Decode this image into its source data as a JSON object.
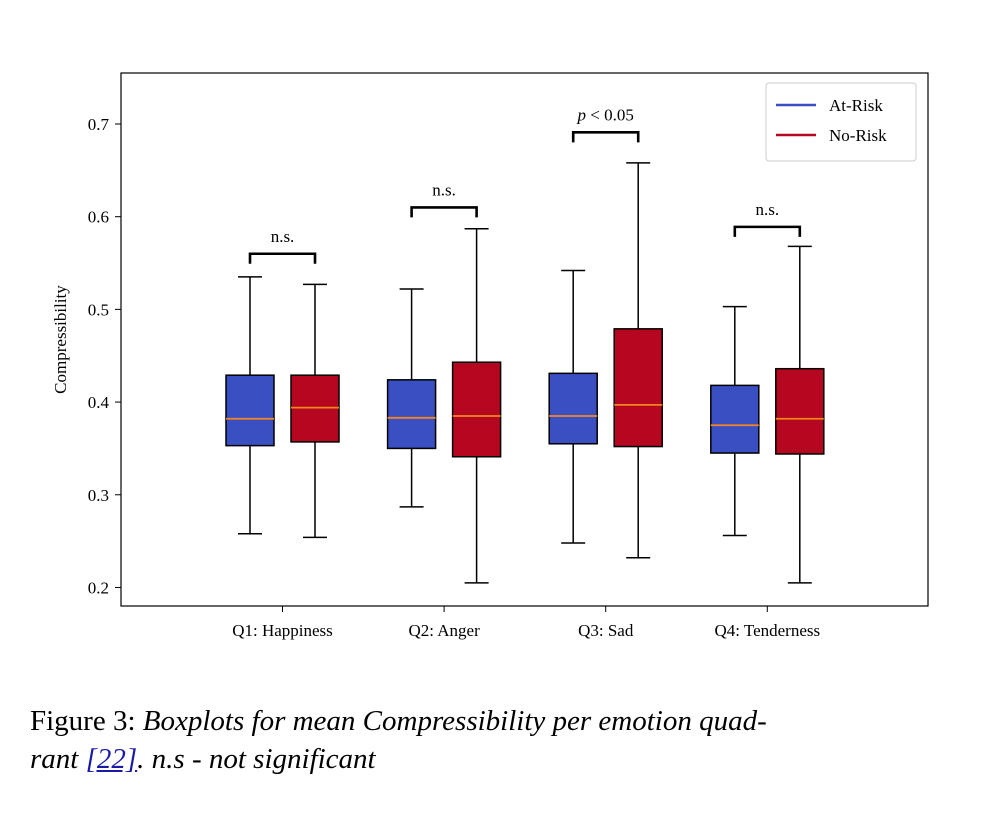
{
  "chart_data": {
    "type": "boxplot",
    "ylabel": "Compressibility",
    "ylim": [
      0.18,
      0.755
    ],
    "yticks": [
      0.2,
      0.3,
      0.4,
      0.5,
      0.6,
      0.7
    ],
    "ytick_labels": [
      "0.2",
      "0.3",
      "0.4",
      "0.5",
      "0.6",
      "0.7"
    ],
    "categories": [
      "Q1: Happiness",
      "Q2: Anger",
      "Q3: Sad",
      "Q4: Tenderness"
    ],
    "series": [
      {
        "name": "At-Risk",
        "color": "#3a4fc1",
        "boxes": [
          {
            "whisker_low": 0.258,
            "q1": 0.353,
            "median": 0.382,
            "q3": 0.429,
            "whisker_high": 0.535
          },
          {
            "whisker_low": 0.287,
            "q1": 0.35,
            "median": 0.383,
            "q3": 0.424,
            "whisker_high": 0.522
          },
          {
            "whisker_low": 0.248,
            "q1": 0.355,
            "median": 0.385,
            "q3": 0.431,
            "whisker_high": 0.542
          },
          {
            "whisker_low": 0.256,
            "q1": 0.345,
            "median": 0.375,
            "q3": 0.418,
            "whisker_high": 0.503
          }
        ]
      },
      {
        "name": "No-Risk",
        "color": "#b5071f",
        "boxes": [
          {
            "whisker_low": 0.254,
            "q1": 0.357,
            "median": 0.394,
            "q3": 0.429,
            "whisker_high": 0.527
          },
          {
            "whisker_low": 0.205,
            "q1": 0.341,
            "median": 0.385,
            "q3": 0.443,
            "whisker_high": 0.587
          },
          {
            "whisker_low": 0.232,
            "q1": 0.352,
            "median": 0.397,
            "q3": 0.479,
            "whisker_high": 0.658
          },
          {
            "whisker_low": 0.205,
            "q1": 0.344,
            "median": 0.382,
            "q3": 0.436,
            "whisker_high": 0.568
          }
        ]
      }
    ],
    "median_color": "#f5861f",
    "annotations": [
      {
        "category": 0,
        "text": "n.s.",
        "bracket_y": 0.56
      },
      {
        "category": 1,
        "text": "n.s.",
        "bracket_y": 0.61
      },
      {
        "category": 2,
        "text_prefix": "p",
        "text_suffix": " < 0.05",
        "bracket_y": 0.691
      },
      {
        "category": 3,
        "text": "n.s.",
        "bracket_y": 0.589
      }
    ],
    "legend": {
      "position": "top-right",
      "entries": [
        "At-Risk",
        "No-Risk"
      ]
    }
  },
  "caption": {
    "label": "Figure 3: ",
    "text_before_ref": "Boxplots for mean Compressibility per emotion quad-",
    "text_line2_start": "rant ",
    "ref": "[22]",
    "text_after_ref": ".  n.s - not significant"
  }
}
